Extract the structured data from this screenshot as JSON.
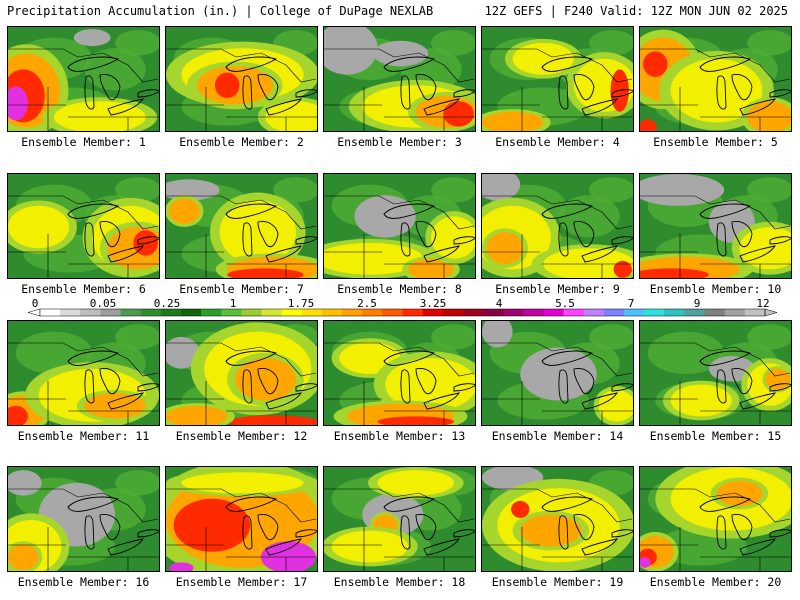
{
  "header": {
    "title_left": "Precipitation Accumulation (in.) | College of DuPage NEXLAB",
    "title_right": "12Z GEFS | F240 Valid: 12Z MON JUN 02 2025"
  },
  "panels": [
    {
      "label": "Ensemble Member: 1"
    },
    {
      "label": "Ensemble Member: 2"
    },
    {
      "label": "Ensemble Member: 3"
    },
    {
      "label": "Ensemble Member: 4"
    },
    {
      "label": "Ensemble Member: 5"
    },
    {
      "label": "Ensemble Member: 6"
    },
    {
      "label": "Ensemble Member: 7"
    },
    {
      "label": "Ensemble Member: 8"
    },
    {
      "label": "Ensemble Member: 9"
    },
    {
      "label": "Ensemble Member: 10"
    },
    {
      "label": "Ensemble Member: 11"
    },
    {
      "label": "Ensemble Member: 12"
    },
    {
      "label": "Ensemble Member: 13"
    },
    {
      "label": "Ensemble Member: 14"
    },
    {
      "label": "Ensemble Member: 15"
    },
    {
      "label": "Ensemble Member: 16"
    },
    {
      "label": "Ensemble Member: 17"
    },
    {
      "label": "Ensemble Member: 18"
    },
    {
      "label": "Ensemble Member: 19"
    },
    {
      "label": "Ensemble Member: 20"
    }
  ],
  "colorbar": {
    "tick_labels": [
      "0",
      "0.05",
      "0.25",
      "1",
      "1.75",
      "2.5",
      "3.25",
      "4",
      "5.5",
      "7",
      "9",
      "12"
    ],
    "colors": [
      "#ffffff",
      "#d9d9d9",
      "#bdbdbd",
      "#9e9e9e",
      "#4f9a4f",
      "#2f8f2f",
      "#1f7a1f",
      "#0e660e",
      "#2aa02a",
      "#5bbf3a",
      "#9acd32",
      "#d4e830",
      "#ffff00",
      "#ffe000",
      "#ffc000",
      "#ffa000",
      "#ff8000",
      "#ff5a00",
      "#ff2a00",
      "#e00000",
      "#c00000",
      "#a00020",
      "#8b0040",
      "#a00070",
      "#c000a0",
      "#e000d0",
      "#ff40ff",
      "#c080ff",
      "#8080ff",
      "#4fc0ff",
      "#30e0e0",
      "#30c0c0",
      "#50a0a0",
      "#808080",
      "#a0a0a0",
      "#c0c0c0"
    ]
  },
  "palette": {
    "green": "#2e8b2e",
    "light_green": "#4fae35",
    "yellow_green": "#a6d52e",
    "yellow": "#f2f000",
    "orange": "#ffa500",
    "red": "#ff2a00",
    "dark_red": "#c00000",
    "magenta": "#e030e0",
    "gray": "#a8a8a8"
  }
}
